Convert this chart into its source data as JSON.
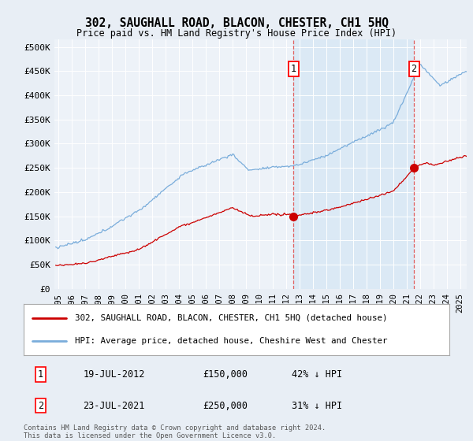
{
  "title": "302, SAUGHALL ROAD, BLACON, CHESTER, CH1 5HQ",
  "subtitle": "Price paid vs. HM Land Registry's House Price Index (HPI)",
  "ylabel_ticks": [
    "£0",
    "£50K",
    "£100K",
    "£150K",
    "£200K",
    "£250K",
    "£300K",
    "£350K",
    "£400K",
    "£450K",
    "£500K"
  ],
  "ytick_values": [
    0,
    50000,
    100000,
    150000,
    200000,
    250000,
    300000,
    350000,
    400000,
    450000,
    500000
  ],
  "ylim": [
    0,
    520000
  ],
  "xlim_start": 1994.7,
  "xlim_end": 2025.5,
  "xtick_years": [
    1995,
    1996,
    1997,
    1998,
    1999,
    2000,
    2001,
    2002,
    2003,
    2004,
    2005,
    2006,
    2007,
    2008,
    2009,
    2010,
    2011,
    2012,
    2013,
    2014,
    2015,
    2016,
    2017,
    2018,
    2019,
    2020,
    2021,
    2022,
    2023,
    2024,
    2025
  ],
  "hpi_color": "#7aaddb",
  "hpi_fill_color": "#daeaf5",
  "price_color": "#cc0000",
  "marker1_date": 2012.54,
  "marker1_price": 150000,
  "marker2_date": 2021.55,
  "marker2_price": 250000,
  "vline_color": "#e06060",
  "legend_line1": "302, SAUGHALL ROAD, BLACON, CHESTER, CH1 5HQ (detached house)",
  "legend_line2": "HPI: Average price, detached house, Cheshire West and Chester",
  "table_row1": [
    "1",
    "19-JUL-2012",
    "£150,000",
    "42% ↓ HPI"
  ],
  "table_row2": [
    "2",
    "23-JUL-2021",
    "£250,000",
    "31% ↓ HPI"
  ],
  "footer": "Contains HM Land Registry data © Crown copyright and database right 2024.\nThis data is licensed under the Open Government Licence v3.0.",
  "bg_color": "#e8eef5",
  "plot_bg_color": "#edf2f8",
  "highlight_fill": "#d8e8f5"
}
